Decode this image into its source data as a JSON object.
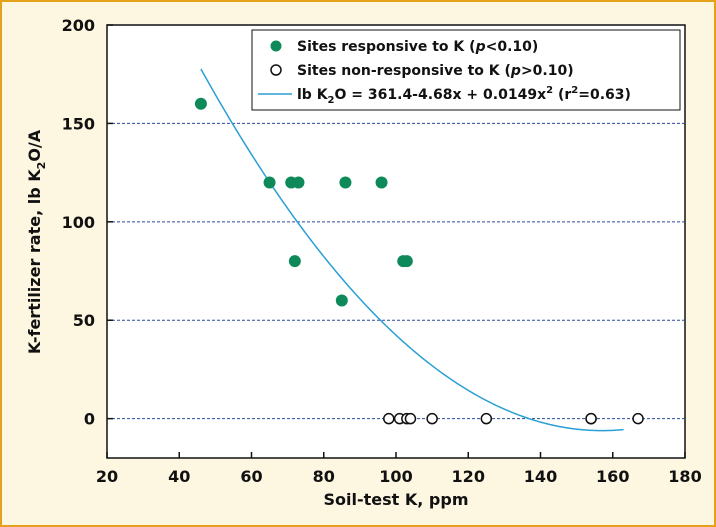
{
  "chart_data": {
    "type": "scatter",
    "xlabel": "Soil-test K, ppm",
    "ylabel": {
      "pre": "K-fertilizer rate, lb K",
      "sub": "2",
      "post": "O/A"
    },
    "xlim": [
      20,
      180
    ],
    "ylim": [
      -20,
      200
    ],
    "xticks": [
      20,
      40,
      60,
      80,
      100,
      120,
      140,
      160,
      180
    ],
    "yticks": [
      0,
      50,
      100,
      150,
      200
    ],
    "grid": "horizontal dashed at 0, 50, 100, 150",
    "legend_position": "top-right",
    "series": [
      {
        "name": {
          "pre": "Sites responsive to K (",
          "italic": "p",
          "post": "<0.10)"
        },
        "marker": "filled-circle",
        "color": "#0e8a5a",
        "points": [
          {
            "x": 46,
            "y": 160
          },
          {
            "x": 65,
            "y": 120
          },
          {
            "x": 71,
            "y": 120
          },
          {
            "x": 73,
            "y": 120
          },
          {
            "x": 86,
            "y": 120
          },
          {
            "x": 96,
            "y": 120
          },
          {
            "x": 72,
            "y": 80
          },
          {
            "x": 102,
            "y": 80
          },
          {
            "x": 103,
            "y": 80
          },
          {
            "x": 85,
            "y": 60
          }
        ]
      },
      {
        "name": {
          "pre": "Sites non-responsive to K (",
          "italic": "p",
          "post": ">0.10)"
        },
        "marker": "open-circle",
        "color": "#111111",
        "points": [
          {
            "x": 98,
            "y": 0
          },
          {
            "x": 101,
            "y": 0
          },
          {
            "x": 103,
            "y": 0
          },
          {
            "x": 104,
            "y": 0
          },
          {
            "x": 110,
            "y": 0
          },
          {
            "x": 125,
            "y": 0
          },
          {
            "x": 154,
            "y": 0
          },
          {
            "x": 154,
            "y": 0
          },
          {
            "x": 167,
            "y": 0
          }
        ]
      },
      {
        "name": {
          "a": "lb K",
          "a_sub": "2",
          "b": "O = 361.4-4.68x + 0.0149x",
          "b_sup": "2",
          "c": " (r",
          "c_sup": "2",
          "d": "=0.63)"
        },
        "type": "fit-line",
        "color": "#2a9fd6",
        "equation": {
          "intercept": 361.4,
          "linear": -4.68,
          "quadratic": 0.0149
        },
        "x_range": [
          46,
          163
        ]
      }
    ]
  }
}
